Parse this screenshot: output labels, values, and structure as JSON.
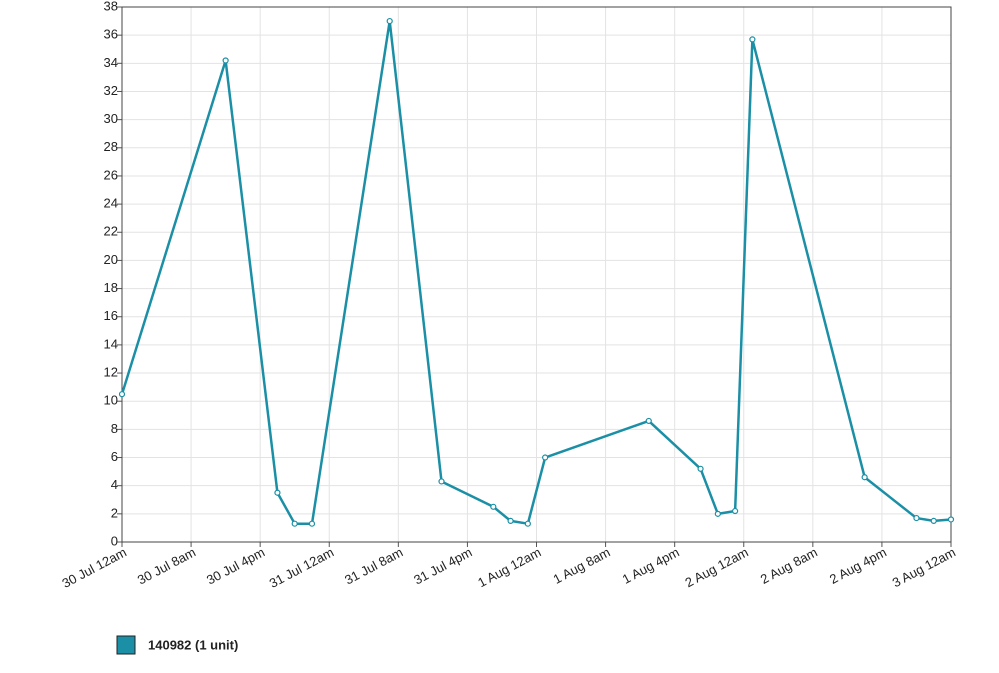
{
  "chart_data": {
    "type": "line",
    "x": [
      "30 Jul 12am",
      "30 Jul 12pm",
      "30 Jul 6pm",
      "30 Jul 8pm",
      "30 Jul 10pm",
      "31 Jul 7am",
      "31 Jul 1pm",
      "31 Jul 7pm",
      "31 Jul 9pm",
      "31 Jul 11pm",
      "1 Aug 1am",
      "1 Aug 1pm",
      "1 Aug 7pm",
      "1 Aug 9pm",
      "1 Aug 11pm",
      "2 Aug 1am",
      "2 Aug 2pm",
      "2 Aug 8pm",
      "2 Aug 10pm",
      "3 Aug 12am"
    ],
    "series": [
      {
        "name": "140982 (1 unit)",
        "color": "#1b8fa5",
        "values": [
          10.5,
          34.2,
          3.5,
          1.3,
          1.3,
          37.0,
          4.3,
          2.5,
          1.5,
          1.3,
          6.0,
          8.6,
          5.2,
          2.0,
          2.2,
          35.7,
          4.6,
          1.7,
          1.5,
          1.6
        ]
      }
    ],
    "xlim": [
      "30 Jul 12am",
      "3 Aug 12am"
    ],
    "xticks": [
      "30 Jul 12am",
      "30 Jul 8am",
      "30 Jul 4pm",
      "31 Jul 12am",
      "31 Jul 8am",
      "31 Jul 4pm",
      "1 Aug 12am",
      "1 Aug 8am",
      "1 Aug 4pm",
      "2 Aug 12am",
      "2 Aug 8am",
      "2 Aug 4pm",
      "3 Aug 12am"
    ],
    "ylim": [
      0,
      38
    ],
    "yticks": [
      0,
      2,
      4,
      6,
      8,
      10,
      12,
      14,
      16,
      18,
      20,
      22,
      24,
      26,
      28,
      30,
      32,
      34,
      36,
      38
    ],
    "grid": true
  }
}
